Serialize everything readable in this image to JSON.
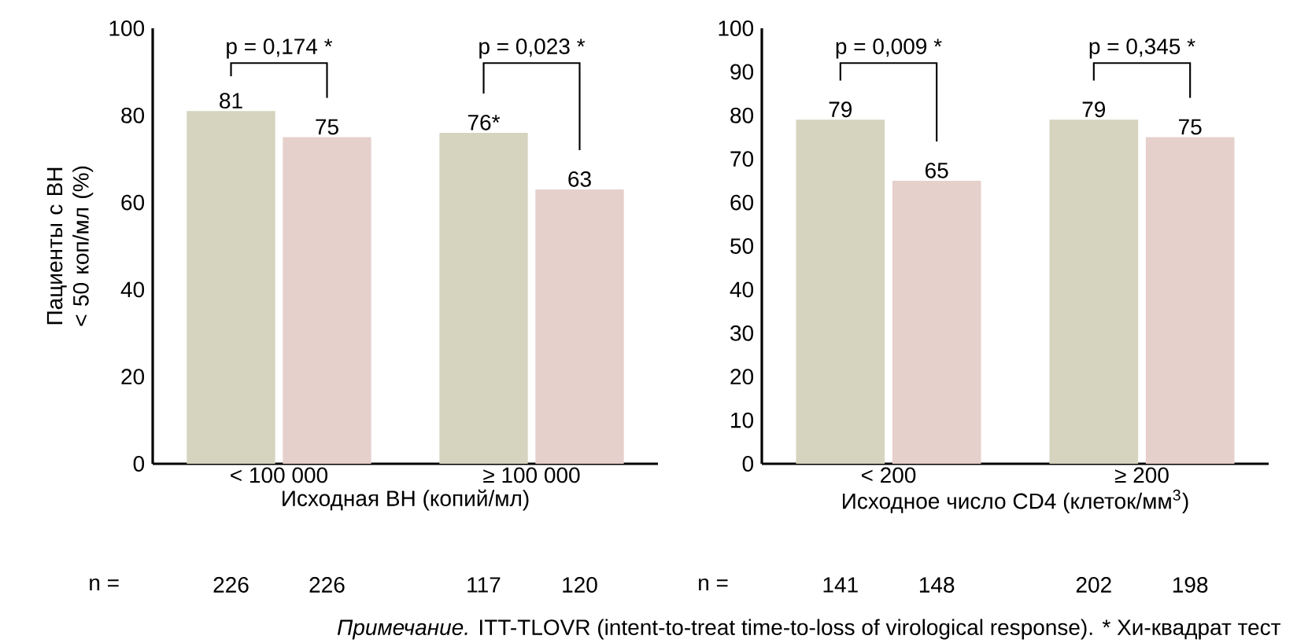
{
  "chart_data": [
    {
      "type": "bar",
      "ylabel": "Пациенты с ВН < 50 коп/мл (%)",
      "xlabel": "Исходная ВН (копий/мл)",
      "categories": [
        "< 100 000",
        "≥ 100 000"
      ],
      "series": [
        {
          "color": "#d6d4bf",
          "values": [
            81,
            76
          ],
          "value_labels": [
            "81",
            "76*"
          ]
        },
        {
          "color": "#e6d0cc",
          "values": [
            75,
            63
          ],
          "value_labels": [
            "75",
            "63"
          ]
        }
      ],
      "ylim": [
        0,
        100
      ],
      "yticks": [
        0,
        20,
        40,
        60,
        80,
        100
      ],
      "annotations": [
        "p = 0,174 *",
        "p = 0,023 *",
        "n =",
        "226",
        "226",
        "117",
        "120"
      ]
    },
    {
      "type": "bar",
      "xlabel": "Исходное число CD4 (клеток/мм$^{3}$)",
      "categories": [
        "< 200",
        "≥ 200"
      ],
      "series": [
        {
          "color": "#d6d4bf",
          "values": [
            79,
            79
          ],
          "value_labels": [
            "79",
            "79"
          ]
        },
        {
          "color": "#e6d0cc",
          "values": [
            65,
            75
          ],
          "value_labels": [
            "65",
            "75"
          ]
        }
      ],
      "ylim": [
        0,
        100
      ],
      "yticks": [
        0,
        10,
        20,
        30,
        40,
        50,
        60,
        70,
        80,
        90,
        100
      ],
      "annotations": [
        "p = 0,009 *",
        "p = 0,345 *",
        "n =",
        "141",
        "148",
        "202",
        "198",
        "*Примечание.* ITT-TLOVR (intent-to-treat time-to-loss of virological response).  * Хи-квадрат тест"
      ]
    }
  ]
}
